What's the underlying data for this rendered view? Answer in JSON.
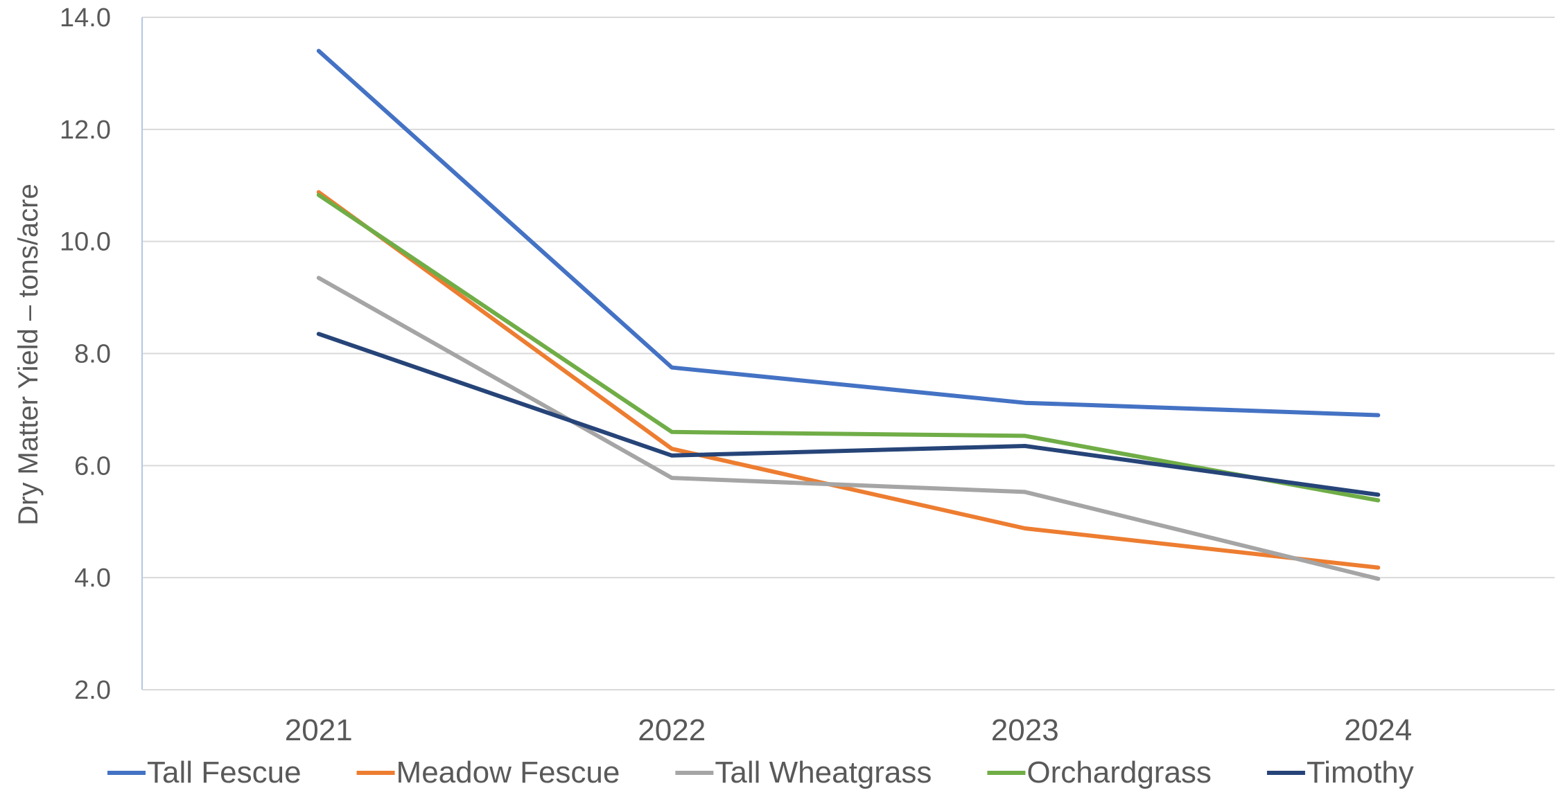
{
  "chart_data": {
    "type": "line",
    "title": "",
    "xlabel": "",
    "ylabel": "Dry Matter Yield – tons/acre",
    "categories": [
      "2021",
      "2022",
      "2023",
      "2024"
    ],
    "ylim": [
      2.0,
      14.0
    ],
    "yticks": [
      "2.0",
      "4.0",
      "6.0",
      "8.0",
      "10.0",
      "12.0",
      "14.0"
    ],
    "grid": true,
    "legend_position": "bottom",
    "series": [
      {
        "name": "Tall Fescue",
        "color": "#4472C4",
        "values": [
          13.4,
          7.75,
          7.12,
          6.9
        ]
      },
      {
        "name": "Meadow Fescue",
        "color": "#ED7D31",
        "values": [
          10.88,
          6.3,
          4.88,
          4.18
        ]
      },
      {
        "name": "Tall Wheatgrass",
        "color": "#A5A5A5",
        "values": [
          9.35,
          5.78,
          5.53,
          3.98
        ]
      },
      {
        "name": "Orchardgrass",
        "color": "#70AD47",
        "values": [
          10.83,
          6.6,
          6.53,
          5.38
        ]
      },
      {
        "name": "Timothy",
        "color": "#264478",
        "values": [
          8.35,
          6.18,
          6.35,
          5.48
        ]
      }
    ]
  }
}
